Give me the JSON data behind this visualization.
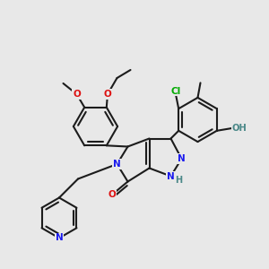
{
  "bg": "#e8e8e8",
  "bc": "#1c1c1c",
  "bw": 1.5,
  "colors": {
    "N": "#1a1aee",
    "O": "#dd1111",
    "Cl": "#00aa00",
    "OH": "#4a8888",
    "NH": "#4a8888",
    "C": "#1c1c1c"
  },
  "figsize": [
    3.0,
    3.0
  ],
  "dpi": 100
}
